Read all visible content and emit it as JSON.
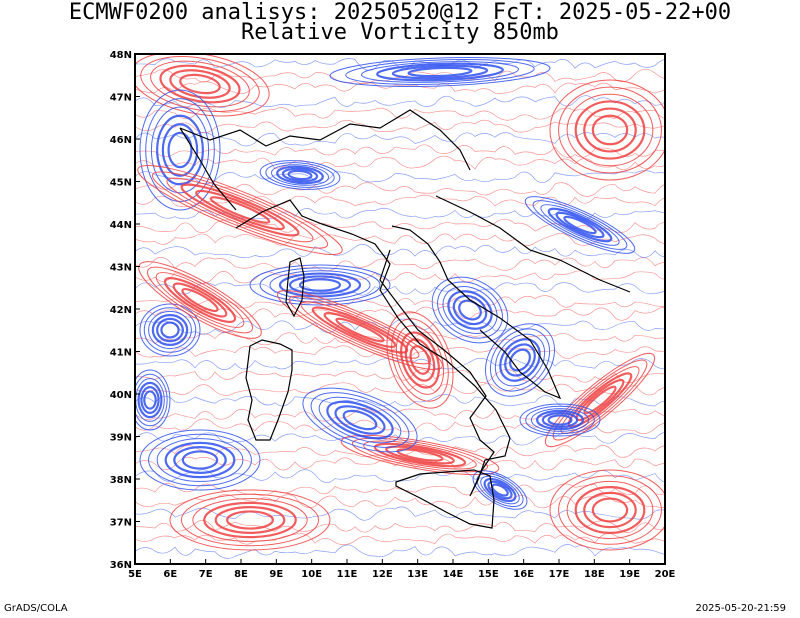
{
  "title_line1": "ECMWF0200 analisys: 20250520@12 FcT: 2025-05-22+00",
  "title_line2": "Relative Vorticity 850mb",
  "footer_left": "GrADS/COLA",
  "footer_right": "2025-05-20-21:59",
  "map": {
    "lon_range": [
      5,
      20
    ],
    "lat_range": [
      36,
      48
    ],
    "lon_ticks": [
      "5E",
      "6E",
      "7E",
      "8E",
      "9E",
      "10E",
      "11E",
      "12E",
      "13E",
      "14E",
      "15E",
      "16E",
      "17E",
      "18E",
      "19E",
      "20E"
    ],
    "lat_ticks": [
      "36N",
      "37N",
      "38N",
      "39N",
      "40N",
      "41N",
      "42N",
      "43N",
      "44N",
      "45N",
      "46N",
      "47N",
      "48N"
    ],
    "colors": {
      "positive_vorticity": "#f04040",
      "negative_vorticity": "#2e50f0",
      "coastline": "#000000"
    }
  }
}
